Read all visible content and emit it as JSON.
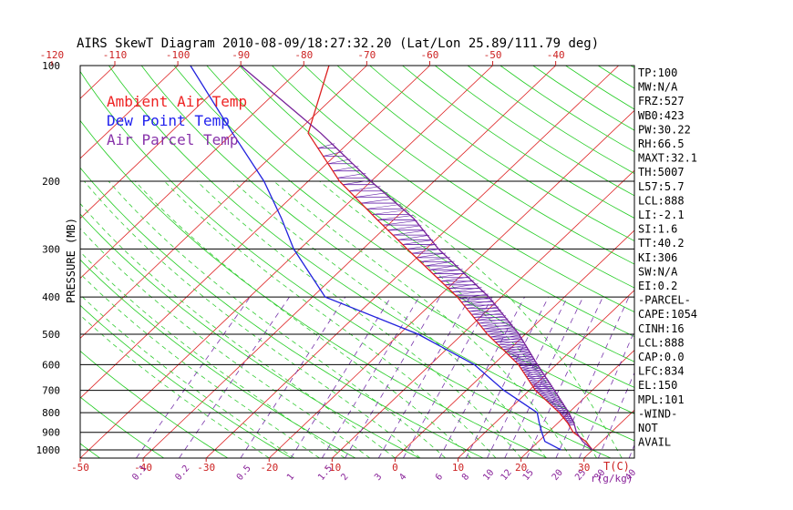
{
  "chart_data": {
    "type": "skewt",
    "title": "AIRS SkewT Diagram 2010-08-09/18:27:32.20 (Lat/Lon 25.89/111.79 deg)",
    "ylabel": "PRESSURE (MB)",
    "pressure_ticks": [
      "100",
      "200",
      "300",
      "400",
      "500",
      "600",
      "700",
      "800",
      "900",
      "1000"
    ],
    "pressure_levels": [
      100,
      200,
      300,
      400,
      500,
      600,
      700,
      800,
      900,
      1000
    ],
    "pressure_range": [
      100,
      1050
    ],
    "temp_range_bottom": [
      -50,
      38
    ],
    "top_temp_ticks": [
      "-120",
      "-110",
      "-100",
      "-90",
      "-80",
      "-70",
      "-60",
      "-50",
      "-40"
    ],
    "bottom_temp_ticks": [
      "-50",
      "-40",
      "-30",
      "-20",
      "-10",
      "0",
      "10",
      "20",
      "30"
    ],
    "bottom_axis_unit": "T(C)",
    "mixing_ratio_labels": [
      "0.1",
      "0.2",
      "0.5",
      "1",
      "1.5",
      "2",
      "3",
      "4",
      "6",
      "8",
      "10",
      "12",
      "15",
      "20",
      "25",
      "30",
      "40"
    ],
    "mixing_ratio_unit": "r(g/kg)",
    "legend": [
      {
        "name": "Ambient Air Temp",
        "color": "#ee2222"
      },
      {
        "name": "Dew Point Temp",
        "color": "#2222ee"
      },
      {
        "name": "Air Parcel Temp",
        "color": "#8833aa"
      }
    ],
    "series": [
      {
        "name": "Ambient Air Temp",
        "color": "#dd2222",
        "points": [
          [
            1000,
            30
          ],
          [
            950,
            27.5
          ],
          [
            900,
            24
          ],
          [
            850,
            21.5
          ],
          [
            800,
            18.5
          ],
          [
            700,
            11
          ],
          [
            600,
            4
          ],
          [
            500,
            -6
          ],
          [
            400,
            -17
          ],
          [
            300,
            -33
          ],
          [
            250,
            -43
          ],
          [
            200,
            -55
          ],
          [
            150,
            -68
          ],
          [
            100,
            -76
          ]
        ]
      },
      {
        "name": "Dew Point Temp",
        "color": "#2222dd",
        "points": [
          [
            1000,
            25
          ],
          [
            950,
            21
          ],
          [
            900,
            19
          ],
          [
            850,
            17
          ],
          [
            800,
            15
          ],
          [
            700,
            6
          ],
          [
            600,
            -3
          ],
          [
            500,
            -17
          ],
          [
            400,
            -38
          ],
          [
            300,
            -51
          ],
          [
            250,
            -58
          ],
          [
            200,
            -67
          ],
          [
            150,
            -80
          ],
          [
            100,
            -98
          ]
        ]
      },
      {
        "name": "Air Parcel Temp",
        "color": "#772299",
        "points": [
          [
            1000,
            30
          ],
          [
            950,
            27
          ],
          [
            900,
            24.5
          ],
          [
            850,
            22.5
          ],
          [
            800,
            20
          ],
          [
            700,
            14
          ],
          [
            600,
            7
          ],
          [
            500,
            -1
          ],
          [
            400,
            -12
          ],
          [
            300,
            -28
          ],
          [
            250,
            -37
          ],
          [
            200,
            -50
          ],
          [
            150,
            -66
          ],
          [
            100,
            -90
          ]
        ]
      }
    ],
    "indices": [
      "TP:100",
      "MW:N/A",
      "FRZ:527",
      "WB0:423",
      "PW:30.22",
      "RH:66.5",
      "MAXT:32.1",
      "TH:5007",
      "L57:5.7",
      "LCL:888",
      "LI:-2.1",
      "SI:1.6",
      "TT:40.2",
      "KI:306",
      "SW:N/A",
      "EI:0.2",
      "-PARCEL-",
      "CAPE:1054",
      "CINH:16",
      "LCL:888",
      "CAP:0.0",
      "LFC:834",
      "EL:150",
      "MPL:101",
      "-WIND-",
      "NOT",
      "AVAIL"
    ]
  }
}
